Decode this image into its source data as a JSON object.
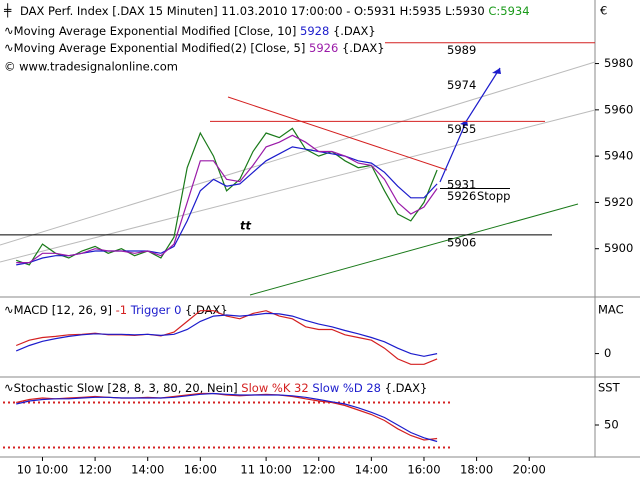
{
  "chart_data": [
    {
      "type": "line",
      "title": "DAX Perf. Index [.DAX  15 Minuten]",
      "datetime": "11.03.2010 17:00:00",
      "ohlc": "- O:5931 H:5935 L:5930",
      "close": "C:5934",
      "copyright": "© www.tradesignalonline.com",
      "currency": "€",
      "marker": "tt",
      "x": [
        0,
        2,
        4,
        6,
        8,
        10,
        12,
        14,
        16,
        18,
        20,
        22,
        24,
        26,
        28,
        30,
        32,
        34,
        36,
        38,
        40,
        42,
        44,
        46,
        48,
        50,
        52,
        54,
        56,
        58,
        60,
        62,
        64
      ],
      "xlim": [
        -2,
        88
      ],
      "ylim": [
        5880,
        6004
      ],
      "yticks": [
        5900,
        5920,
        5940,
        5960,
        5980
      ],
      "series": [
        {
          "color": "#1a7a1a",
          "values": [
            5895,
            5893,
            5902,
            5898,
            5896,
            5899,
            5901,
            5898,
            5900,
            5897,
            5899,
            5896,
            5905,
            5935,
            5950,
            5940,
            5925,
            5930,
            5942,
            5950,
            5948,
            5952,
            5943,
            5940,
            5942,
            5938,
            5935,
            5936,
            5925,
            5915,
            5912,
            5920,
            5934
          ]
        },
        {
          "name": "Moving Average Exponential Modified [Close, 10]",
          "last": 5928,
          "source": "{.DAX}",
          "color": "#1c1ccc",
          "values": [
            5893,
            5894,
            5896,
            5897,
            5897,
            5898,
            5899,
            5899,
            5899,
            5899,
            5899,
            5898,
            5901,
            5912,
            5925,
            5930,
            5927,
            5928,
            5933,
            5938,
            5941,
            5944,
            5943,
            5942,
            5941,
            5940,
            5938,
            5937,
            5933,
            5927,
            5922,
            5922,
            5928
          ]
        },
        {
          "name": "Moving Average Exponential Modified(2) [Close, 5]",
          "last": 5926,
          "source": "{.DAX}",
          "color": "#9a1aa8",
          "values": [
            5894,
            5894,
            5898,
            5898,
            5897,
            5898,
            5900,
            5899,
            5899,
            5898,
            5899,
            5897,
            5902,
            5920,
            5938,
            5938,
            5930,
            5929,
            5936,
            5944,
            5946,
            5949,
            5946,
            5942,
            5942,
            5940,
            5937,
            5936,
            5930,
            5920,
            5915,
            5918,
            5926
          ]
        }
      ],
      "levels": [
        {
          "value": 5989,
          "color": "#d42020"
        },
        {
          "value": 5974,
          "color": "#aaaaaa"
        },
        {
          "value": 5955,
          "color": "#d42020"
        },
        {
          "value": 5931,
          "color": "#d42020"
        },
        {
          "value": 5926,
          "label": "Stopp",
          "color": "#000000"
        },
        {
          "value": 5906,
          "color": "#000000"
        }
      ]
    },
    {
      "type": "line",
      "title": "MACD [12, 26, 9]",
      "source": "{.DAX}",
      "axis_label": "MAC",
      "x": [
        0,
        2,
        4,
        6,
        8,
        10,
        12,
        14,
        16,
        18,
        20,
        22,
        24,
        26,
        28,
        30,
        32,
        34,
        36,
        38,
        40,
        42,
        44,
        46,
        48,
        50,
        52,
        54,
        56,
        58,
        60,
        62,
        64
      ],
      "xlim": [
        -2,
        88
      ],
      "ylim": [
        -4,
        10
      ],
      "yticks": [
        0
      ],
      "series": [
        {
          "name": "MACD",
          "last": -1,
          "color": "#d42020",
          "values": [
            1.5,
            2.5,
            3,
            3.2,
            3.5,
            3.6,
            3.8,
            3.5,
            3.5,
            3.4,
            3.6,
            3.3,
            4,
            6,
            8,
            8,
            7,
            6.5,
            7.5,
            8,
            7,
            6.5,
            5,
            4.5,
            4.5,
            3.5,
            3,
            2.5,
            1,
            -1,
            -2,
            -2,
            -1
          ]
        },
        {
          "name": "Trigger",
          "last": 0,
          "color": "#1c1ccc",
          "values": [
            0.5,
            1.5,
            2.3,
            2.8,
            3.2,
            3.5,
            3.7,
            3.6,
            3.6,
            3.5,
            3.6,
            3.4,
            3.6,
            4.5,
            6,
            7,
            7.2,
            7,
            7.2,
            7.5,
            7.4,
            7,
            6.2,
            5.5,
            5,
            4.3,
            3.7,
            3,
            2.2,
            1,
            0,
            -0.5,
            0
          ]
        }
      ]
    },
    {
      "type": "line",
      "title": "Stochastic Slow [28, 8, 3, 80, 20, Nein]",
      "source": "{.DAX}",
      "axis_label": "SST",
      "x": [
        0,
        2,
        4,
        6,
        8,
        10,
        12,
        14,
        16,
        18,
        20,
        22,
        24,
        26,
        28,
        30,
        32,
        34,
        36,
        38,
        40,
        42,
        44,
        46,
        48,
        50,
        52,
        54,
        56,
        58,
        60,
        62,
        64
      ],
      "xlim": [
        -2,
        88
      ],
      "ylim": [
        10,
        110
      ],
      "yticks": [
        50
      ],
      "levels": [
        80,
        20
      ],
      "xticks": [
        {
          "value": 4,
          "label": "10 10:00"
        },
        {
          "value": 12,
          "label": "12:00"
        },
        {
          "value": 20,
          "label": "14:00"
        },
        {
          "value": 28,
          "label": "16:00"
        },
        {
          "value": 38,
          "label": "11 10:00"
        },
        {
          "value": 46,
          "label": "12:00"
        },
        {
          "value": 54,
          "label": "14:00"
        },
        {
          "value": 62,
          "label": "16:00"
        },
        {
          "value": 70,
          "label": "18:00"
        },
        {
          "value": 78,
          "label": "20:00"
        }
      ],
      "series": [
        {
          "name": "Slow %K",
          "last": 32,
          "color": "#d42020",
          "values": [
            80,
            84,
            86,
            85,
            86,
            87,
            88,
            87,
            86,
            86,
            87,
            86,
            88,
            90,
            92,
            92,
            90,
            89,
            90,
            91,
            90,
            88,
            85,
            82,
            80,
            76,
            70,
            64,
            56,
            45,
            36,
            30,
            32
          ]
        },
        {
          "name": "Slow %D",
          "last": 28,
          "color": "#1c1ccc",
          "values": [
            78,
            82,
            84,
            85,
            85,
            86,
            87,
            87,
            86,
            86,
            86,
            86,
            87,
            89,
            91,
            92,
            91,
            90,
            90,
            90,
            90,
            89,
            87,
            84,
            81,
            78,
            73,
            67,
            60,
            50,
            40,
            33,
            28
          ]
        }
      ]
    }
  ]
}
